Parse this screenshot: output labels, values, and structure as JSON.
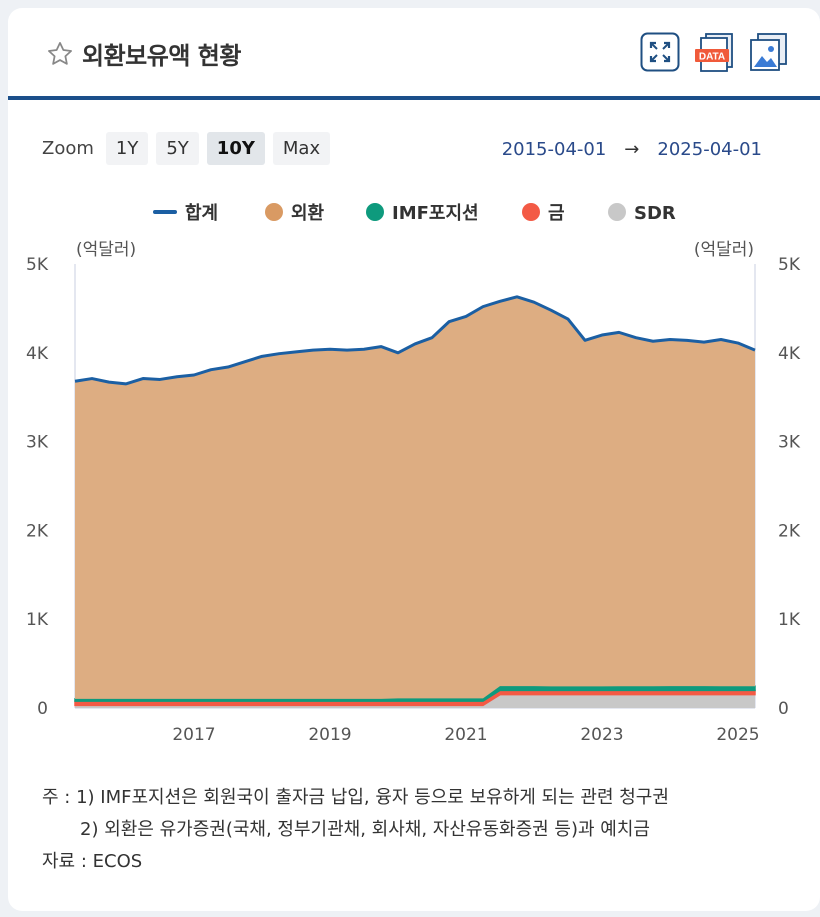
{
  "header": {
    "title": "외환보유액 현황",
    "icons": [
      "star-icon",
      "fullscreen-icon",
      "data-download-icon",
      "image-download-icon"
    ],
    "data_icon_text": "DATA"
  },
  "zoom": {
    "label": "Zoom",
    "buttons": [
      "1Y",
      "5Y",
      "10Y",
      "Max"
    ],
    "active": "10Y"
  },
  "range": {
    "from": "2015-04-01",
    "arrow": "→",
    "to": "2025-04-01"
  },
  "colors": {
    "total": "#1b5fa3",
    "fx": "#d99a63",
    "fx_area": "#ddad82",
    "imf": "#0e9a7d",
    "gold": "#f35a45",
    "sdr": "#c8c8c8",
    "divider": "#1b4f8a"
  },
  "chart_data": {
    "type": "area",
    "title": "",
    "unit_label_left": "(억달러)",
    "unit_label_right": "(억달러)",
    "ylim": [
      0,
      5000
    ],
    "y_ticks": [
      "0",
      "1K",
      "2K",
      "3K",
      "4K",
      "5K"
    ],
    "y_tick_values": [
      0,
      1000,
      2000,
      3000,
      4000,
      5000
    ],
    "x_range": [
      2015.25,
      2025.25
    ],
    "x_ticks": [
      "2017",
      "2019",
      "2021",
      "2023",
      "2025"
    ],
    "x_tick_values": [
      2017,
      2019,
      2021,
      2023,
      2025
    ],
    "legend": [
      "합계",
      "외환",
      "IMF포지션",
      "금",
      "SDR"
    ],
    "x": [
      2015.25,
      2015.5,
      2015.75,
      2016.0,
      2016.25,
      2016.5,
      2016.75,
      2017.0,
      2017.25,
      2017.5,
      2017.75,
      2018.0,
      2018.25,
      2018.5,
      2018.75,
      2019.0,
      2019.25,
      2019.5,
      2019.75,
      2020.0,
      2020.25,
      2020.5,
      2020.75,
      2021.0,
      2021.25,
      2021.5,
      2021.75,
      2022.0,
      2022.25,
      2022.5,
      2022.75,
      2023.0,
      2023.25,
      2023.5,
      2023.75,
      2024.0,
      2024.25,
      2024.5,
      2024.75,
      2025.0,
      2025.25
    ],
    "series": [
      {
        "name": "합계",
        "values": [
          3680,
          3710,
          3670,
          3650,
          3710,
          3700,
          3730,
          3750,
          3810,
          3840,
          3900,
          3960,
          3990,
          4010,
          4030,
          4040,
          4030,
          4040,
          4070,
          4000,
          4100,
          4170,
          4350,
          4410,
          4520,
          4580,
          4630,
          4570,
          4480,
          4380,
          4140,
          4200,
          4230,
          4170,
          4130,
          4150,
          4140,
          4120,
          4150,
          4110,
          4030
        ]
      },
      {
        "name": "외환",
        "values": [
          3570,
          3600,
          3560,
          3540,
          3600,
          3590,
          3620,
          3640,
          3700,
          3730,
          3790,
          3850,
          3880,
          3900,
          3920,
          3930,
          3920,
          3930,
          3960,
          3890,
          3990,
          4060,
          4240,
          4300,
          4410,
          4330,
          4380,
          4320,
          4240,
          4150,
          3900,
          3960,
          3990,
          3930,
          3890,
          3910,
          3900,
          3880,
          3910,
          3870,
          3790
        ]
      },
      {
        "name": "IMF포지션",
        "values": [
          25,
          25,
          25,
          25,
          25,
          25,
          25,
          25,
          25,
          25,
          25,
          25,
          25,
          25,
          25,
          25,
          25,
          25,
          25,
          30,
          30,
          30,
          30,
          30,
          30,
          48,
          48,
          48,
          46,
          45,
          45,
          46,
          47,
          47,
          47,
          48,
          48,
          48,
          47,
          47,
          47
        ]
      },
      {
        "name": "금",
        "values": [
          48,
          48,
          48,
          48,
          48,
          48,
          48,
          48,
          48,
          48,
          48,
          48,
          48,
          48,
          48,
          48,
          48,
          48,
          48,
          48,
          48,
          48,
          48,
          48,
          48,
          48,
          48,
          48,
          48,
          48,
          48,
          48,
          48,
          48,
          48,
          48,
          48,
          48,
          48,
          48,
          48
        ]
      },
      {
        "name": "SDR",
        "values": [
          30,
          30,
          30,
          30,
          30,
          30,
          30,
          30,
          30,
          30,
          30,
          30,
          30,
          30,
          30,
          30,
          30,
          30,
          30,
          30,
          30,
          30,
          30,
          30,
          30,
          150,
          150,
          150,
          150,
          150,
          150,
          150,
          150,
          150,
          150,
          150,
          150,
          150,
          150,
          150,
          150
        ]
      }
    ]
  },
  "notes": {
    "line1": "주 : 1)  IMF포지션은 회원국이 출자금 납입, 융자 등으로 보유하게 되는 관련 청구권",
    "line2": "2)  외환은 유가증권(국채, 정부기관채, 회사채, 자산유동화증권 등)과 예치금",
    "source": "자료 :  ECOS"
  }
}
